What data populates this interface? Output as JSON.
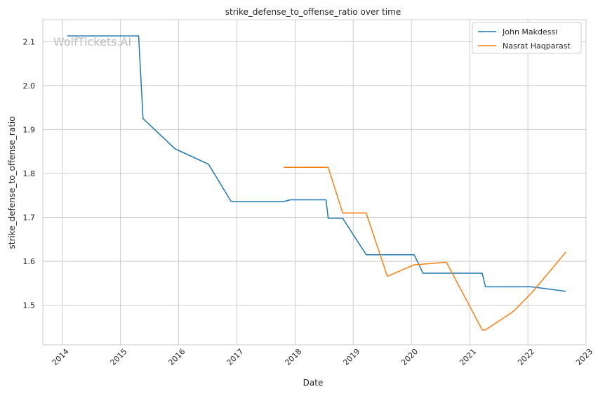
{
  "chart_data": {
    "type": "line",
    "title": "strike_defense_to_offense_ratio over time",
    "xlabel": "Date",
    "ylabel": "strike_defense_to_offense_ratio",
    "watermark": "WolfTickets.AI",
    "x_ticks": [
      "2014",
      "2015",
      "2016",
      "2017",
      "2018",
      "2019",
      "2020",
      "2021",
      "2022",
      "2023"
    ],
    "y_ticks": [
      "1.5",
      "1.6",
      "1.7",
      "1.8",
      "1.9",
      "2.0",
      "2.1"
    ],
    "xlim": [
      "2013-09-01",
      "2023-01-01"
    ],
    "ylim": [
      1.41,
      2.15
    ],
    "grid": true,
    "legend_position": "top-right",
    "colors": {
      "series1": "#1f77b4",
      "series2": "#ff7f0e",
      "grid": "#cccccc",
      "axes": "#cccccc"
    },
    "series": [
      {
        "name": "John Makdessi",
        "points": [
          [
            "2014-02-01",
            2.113
          ],
          [
            "2015-04-25",
            2.113
          ],
          [
            "2015-05-23",
            1.925
          ],
          [
            "2015-12-10",
            1.856
          ],
          [
            "2016-07-07",
            1.821
          ],
          [
            "2016-11-26",
            1.736
          ],
          [
            "2017-10-21",
            1.736
          ],
          [
            "2017-12-02",
            1.74
          ],
          [
            "2018-07-14",
            1.74
          ],
          [
            "2018-07-28",
            1.698
          ],
          [
            "2018-10-27",
            1.698
          ],
          [
            "2019-03-23",
            1.615
          ],
          [
            "2020-01-18",
            1.615
          ],
          [
            "2020-03-14",
            1.573
          ],
          [
            "2021-03-20",
            1.573
          ],
          [
            "2021-04-10",
            1.542
          ],
          [
            "2022-01-22",
            1.542
          ],
          [
            "2022-08-27",
            1.532
          ]
        ]
      },
      {
        "name": "Nasrat Haqparast",
        "points": [
          [
            "2017-10-21",
            1.814
          ],
          [
            "2018-07-28",
            1.814
          ],
          [
            "2018-10-27",
            1.71
          ],
          [
            "2019-03-23",
            1.71
          ],
          [
            "2019-08-03",
            1.566
          ],
          [
            "2020-01-18",
            1.592
          ],
          [
            "2020-08-08",
            1.598
          ],
          [
            "2021-03-20",
            1.444
          ],
          [
            "2021-04-10",
            1.444
          ],
          [
            "2021-10-02",
            1.486
          ],
          [
            "2022-01-29",
            1.53
          ],
          [
            "2022-08-27",
            1.621
          ]
        ]
      }
    ]
  }
}
